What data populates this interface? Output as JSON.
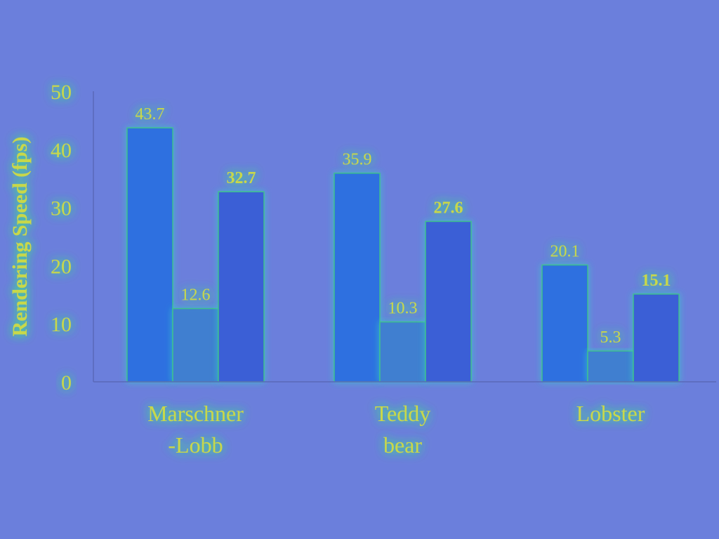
{
  "chart_data": {
    "type": "bar",
    "title": "",
    "xlabel": "",
    "ylabel": "Rendering Speed (fps)",
    "ylim": [
      0,
      50
    ],
    "yticks": [
      "0",
      "10",
      "20",
      "30",
      "40",
      "50"
    ],
    "categories": [
      [
        "Marschner",
        "-Lobb"
      ],
      [
        "Teddy",
        "bear"
      ],
      [
        "Lobster"
      ]
    ],
    "series": [
      {
        "values": [
          43.7,
          35.9,
          20.1
        ],
        "labels": [
          "43.7",
          "35.9",
          "20.1"
        ],
        "bold": false,
        "color": "#2f6fe0"
      },
      {
        "values": [
          12.6,
          10.3,
          5.3
        ],
        "labels": [
          "12.6",
          "10.3",
          "5.3"
        ],
        "bold": false,
        "color": "#3f7fd0"
      },
      {
        "values": [
          32.7,
          27.6,
          15.1
        ],
        "labels": [
          "32.7",
          "27.6",
          "15.1"
        ],
        "bold": true,
        "color": "#3b5fd6"
      }
    ],
    "grid": false,
    "legend": "none"
  },
  "colors": {
    "background": "#6b7fdc",
    "text": "#c8d84a",
    "glow": "#5fe08a",
    "axis": "#5a68b8"
  }
}
